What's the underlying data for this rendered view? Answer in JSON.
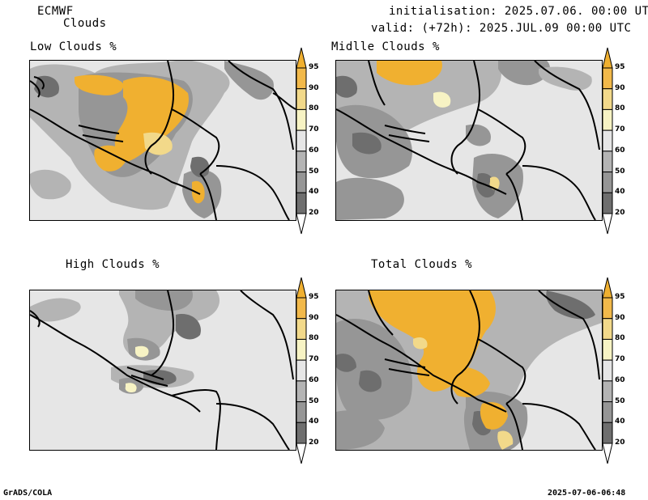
{
  "header": {
    "model": "ECMWF",
    "product": "Clouds",
    "init": "initialisation: 2025.07.06. 00:00 UTC",
    "valid": "valid: (+72h): 2025.JUL.09 00:00 UTC"
  },
  "panels": {
    "low": {
      "title": "Low Clouds %"
    },
    "middle": {
      "title": "Midlle Clouds %"
    },
    "high": {
      "title": "High Clouds %"
    },
    "total": {
      "title": "Total Clouds %"
    }
  },
  "legend": {
    "levels": [
      "20",
      "40",
      "50",
      "60",
      "70",
      "80",
      "90",
      "95"
    ],
    "colors": [
      "#ffffff",
      "#6e6e6e",
      "#969696",
      "#b4b4b4",
      "#e6e6e6",
      "#f7f3c4",
      "#f2d98a",
      "#f2b94a",
      "#f0b030"
    ]
  },
  "footer": {
    "left": "GrADS/COLA",
    "right": "2025-07-06-06:48"
  }
}
